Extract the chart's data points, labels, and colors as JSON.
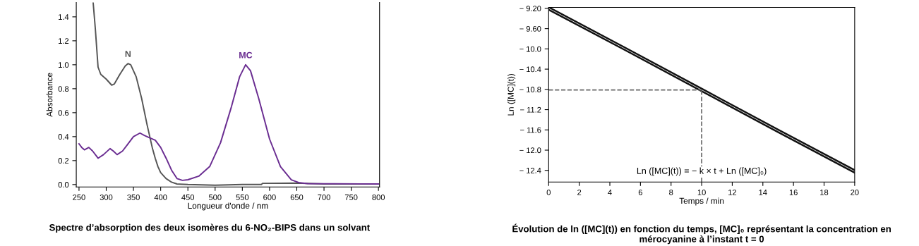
{
  "chart_data": [
    {
      "type": "line",
      "title": "Spectre d’absorption des deux isomères du 6-NO₂-BIPS dans un solvant",
      "xlabel": "Longueur d'onde / nm",
      "ylabel": "Absorbance",
      "xlim": [
        245,
        802
      ],
      "ylim": [
        -0.02,
        1.52
      ],
      "xticks": [
        250,
        300,
        350,
        400,
        450,
        500,
        550,
        600,
        650,
        700,
        750,
        800
      ],
      "yticks": [
        {
          "value": 0,
          "label": "0.0"
        },
        {
          "value": 0.2,
          "label": "0.2"
        },
        {
          "value": 0.4,
          "label": "0.4"
        },
        {
          "value": 0.6,
          "label": "0.6"
        },
        {
          "value": 0.8,
          "label": "0.8"
        },
        {
          "value": 1,
          "label": "1.0"
        },
        {
          "value": 1.2,
          "label": "1.2"
        },
        {
          "value": 1.4,
          "label": "1.4"
        }
      ],
      "grid": false,
      "legend": false,
      "series": [
        {
          "name": "N",
          "color": "#555555",
          "x": [
            276,
            280,
            285,
            290,
            300,
            310,
            315,
            325,
            335,
            340,
            345,
            355,
            365,
            375,
            380,
            385,
            390,
            395,
            400,
            410,
            420,
            430,
            450,
            500,
            550,
            585,
            587,
            650,
            700,
            800
          ],
          "values": [
            1.52,
            1.3,
            0.98,
            0.92,
            0.88,
            0.83,
            0.84,
            0.92,
            0.99,
            1.01,
            1.0,
            0.9,
            0.72,
            0.5,
            0.4,
            0.3,
            0.22,
            0.15,
            0.1,
            0.05,
            0.02,
            0.005,
            0.0,
            -0.005,
            0.0,
            0.0,
            0.01,
            0.012,
            0.005,
            0.005
          ]
        },
        {
          "name": "MC",
          "color": "#6a2d91",
          "x": [
            250,
            255,
            260,
            268,
            275,
            285,
            295,
            307,
            313,
            320,
            330,
            340,
            350,
            362,
            370,
            380,
            390,
            400,
            410,
            420,
            430,
            440,
            450,
            470,
            490,
            510,
            530,
            545,
            556,
            565,
            580,
            600,
            620,
            640,
            655,
            670,
            800
          ],
          "values": [
            0.34,
            0.31,
            0.29,
            0.31,
            0.28,
            0.22,
            0.25,
            0.3,
            0.28,
            0.25,
            0.28,
            0.34,
            0.4,
            0.43,
            0.41,
            0.39,
            0.37,
            0.31,
            0.22,
            0.12,
            0.05,
            0.035,
            0.04,
            0.07,
            0.15,
            0.35,
            0.65,
            0.9,
            1.0,
            0.95,
            0.72,
            0.38,
            0.15,
            0.04,
            0.015,
            0.008,
            0.005
          ]
        }
      ]
    },
    {
      "type": "line",
      "title": "Évolution de ln ([MC](t)) en fonction du temps, [MC]₀ représentant la concentration en mérocyanine à l’instant t = 0",
      "xlabel": "Temps / min",
      "ylabel": "Ln ([MC](t))",
      "annotations": [
        "Ln ([MC](t)) = − k × t + Ln ([MC]₀)"
      ],
      "xlim": [
        0,
        20
      ],
      "ylim": [
        -12.63,
        -9.18
      ],
      "xticks": [
        0,
        2,
        4,
        6,
        8,
        10,
        12,
        14,
        16,
        18,
        20
      ],
      "yticks": [
        {
          "value": -9.2,
          "label": "− 9.20"
        },
        {
          "value": -9.6,
          "label": "− 9.60"
        },
        {
          "value": -10.0,
          "label": "− 10.0"
        },
        {
          "value": -10.4,
          "label": "− 10.4"
        },
        {
          "value": -10.8,
          "label": "− 10.8"
        },
        {
          "value": -11.2,
          "label": "− 11.2"
        },
        {
          "value": -11.6,
          "label": "− 11.6"
        },
        {
          "value": -12.0,
          "label": "− 12.0"
        },
        {
          "value": -12.4,
          "label": "− 12.4"
        }
      ],
      "grid": false,
      "legend": false,
      "ref_lines": [
        {
          "axis": "y",
          "value": -10.81,
          "color": "#666666",
          "line_style": "dashed"
        },
        {
          "axis": "x",
          "value": 10,
          "color": "#666666",
          "line_style": "dashed"
        }
      ],
      "series": [
        {
          "color": "#111111",
          "x": [
            0,
            5,
            10,
            15,
            20
          ],
          "values": [
            -9.2,
            -10.0,
            -10.81,
            -11.62,
            -12.42
          ]
        }
      ]
    }
  ]
}
